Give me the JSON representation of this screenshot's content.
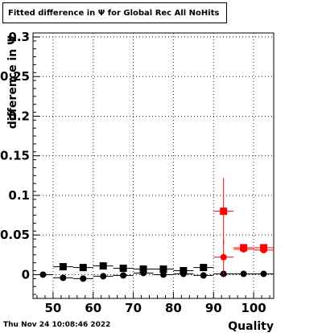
{
  "header": {
    "title": "Fitted difference in  Ψ  for Global Rec All NoHits"
  },
  "footer": {
    "timestamp": "Thu Nov 24 10:08:46 2022"
  },
  "chart_data": {
    "type": "scatter",
    "title": "Fitted difference in  Ψ  for Global Rec All NoHits",
    "xlabel": "Quality",
    "ylabel": "difference in Ψ",
    "xlim": [
      45,
      105
    ],
    "ylim": [
      -0.03,
      0.305
    ],
    "grid": true,
    "x_ticks": [
      50,
      60,
      70,
      80,
      90,
      100
    ],
    "y_ticks": [
      0,
      0.05,
      0.1,
      0.15,
      0.2,
      0.25,
      0.3
    ],
    "x_tick_labels": [
      "50",
      "60",
      "70",
      "80",
      "90",
      "100"
    ],
    "y_tick_labels": [
      "0",
      "0.05",
      "0.1",
      "0.15",
      "0.2",
      "0.25",
      "0.3"
    ],
    "series": [
      {
        "marker": "square",
        "color": "#000000",
        "x": [
          52.5,
          57.5,
          62.5,
          67.5,
          72.5,
          77.5,
          82.5,
          87.5
        ],
        "y": [
          0.01,
          0.009,
          0.011,
          0.008,
          0.007,
          0.007,
          0.005,
          0.009
        ],
        "xerr": 2.5
      },
      {
        "marker": "circle",
        "color": "#000000",
        "x": [
          47.5,
          52.5,
          57.5,
          62.5,
          67.5,
          72.5,
          77.5,
          82.5,
          87.5,
          92.5,
          97.5,
          102.5
        ],
        "y": [
          0.0,
          -0.004,
          -0.005,
          -0.002,
          -0.001,
          0.002,
          0.0,
          0.001,
          -0.001,
          0.001,
          0.001,
          0.001
        ],
        "xerr": 2.5
      },
      {
        "marker": "square",
        "color": "#ff0000",
        "x": [
          92.5,
          97.5,
          102.5
        ],
        "y": [
          0.08,
          0.034,
          0.034
        ],
        "yerr": [
          0.042,
          0.003,
          0.003
        ],
        "xerr": 2.5
      },
      {
        "marker": "circle",
        "color": "#ff0000",
        "x": [
          92.5,
          97.5,
          102.5
        ],
        "y": [
          0.022,
          0.032,
          0.031
        ],
        "yerr": [
          0.022,
          0.002,
          0.002
        ],
        "xerr": 2.5
      }
    ]
  }
}
